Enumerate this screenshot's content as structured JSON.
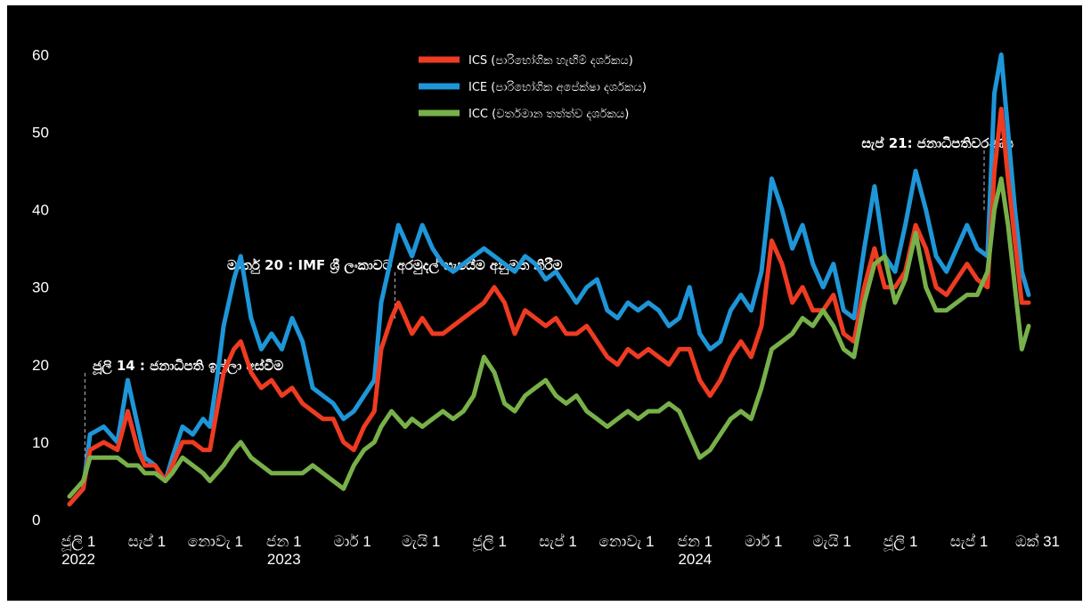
{
  "chart_data": {
    "type": "line",
    "title": "",
    "xlabel": "",
    "ylabel": "",
    "ylim": [
      0,
      62
    ],
    "yticks": [
      0,
      10,
      20,
      30,
      40,
      50,
      60
    ],
    "xlim": [
      0,
      28.0
    ],
    "x_unit": "months since 2022-07-01",
    "xticks": [
      {
        "x": 0,
        "label": "ජූලි 1",
        "year": "2022"
      },
      {
        "x": 2,
        "label": "සැප් 1",
        "year": ""
      },
      {
        "x": 4,
        "label": "නොවැ 1",
        "year": ""
      },
      {
        "x": 6,
        "label": "ජන 1",
        "year": "2023"
      },
      {
        "x": 8,
        "label": "මාර් 1",
        "year": ""
      },
      {
        "x": 10,
        "label": "මැයි 1",
        "year": ""
      },
      {
        "x": 12,
        "label": "ජූලි 1",
        "year": ""
      },
      {
        "x": 14,
        "label": "සැප් 1",
        "year": ""
      },
      {
        "x": 16,
        "label": "නොවැ 1",
        "year": ""
      },
      {
        "x": 18,
        "label": "ජන 1",
        "year": "2024"
      },
      {
        "x": 20,
        "label": "මාර් 1",
        "year": ""
      },
      {
        "x": 22,
        "label": "මැයි 1",
        "year": ""
      },
      {
        "x": 24,
        "label": "ජූලි 1",
        "year": ""
      },
      {
        "x": 26,
        "label": "සැප් 1",
        "year": ""
      },
      {
        "x": 28,
        "label": "ඔක් 31",
        "year": ""
      }
    ],
    "grid": false,
    "legend": "top-center",
    "series": [
      {
        "name": "ICE (පාරිභෝගික අපේක්ෂා දර්ශකය)",
        "color": "#1e96d8",
        "points": [
          [
            0,
            2
          ],
          [
            0.4,
            4
          ],
          [
            0.6,
            11
          ],
          [
            1.0,
            12
          ],
          [
            1.4,
            10
          ],
          [
            1.7,
            18
          ],
          [
            2.0,
            12
          ],
          [
            2.2,
            8
          ],
          [
            2.5,
            7
          ],
          [
            2.8,
            5
          ],
          [
            3.0,
            8
          ],
          [
            3.3,
            12
          ],
          [
            3.6,
            11
          ],
          [
            3.9,
            13
          ],
          [
            4.1,
            12
          ],
          [
            4.3,
            18
          ],
          [
            4.5,
            25
          ],
          [
            4.8,
            31
          ],
          [
            5.0,
            34
          ],
          [
            5.3,
            26
          ],
          [
            5.6,
            22
          ],
          [
            5.9,
            24
          ],
          [
            6.2,
            22
          ],
          [
            6.5,
            26
          ],
          [
            6.8,
            23
          ],
          [
            7.1,
            17
          ],
          [
            7.4,
            16
          ],
          [
            7.7,
            15
          ],
          [
            8.0,
            13
          ],
          [
            8.3,
            14
          ],
          [
            8.6,
            16
          ],
          [
            8.9,
            18
          ],
          [
            9.1,
            28
          ],
          [
            9.4,
            34
          ],
          [
            9.6,
            38
          ],
          [
            9.8,
            36
          ],
          [
            10.0,
            34
          ],
          [
            10.3,
            38
          ],
          [
            10.6,
            35
          ],
          [
            10.9,
            33
          ],
          [
            11.2,
            32
          ],
          [
            11.5,
            33
          ],
          [
            11.8,
            34
          ],
          [
            12.1,
            35
          ],
          [
            12.4,
            34
          ],
          [
            12.7,
            33
          ],
          [
            13.0,
            32
          ],
          [
            13.3,
            34
          ],
          [
            13.6,
            33
          ],
          [
            13.9,
            31
          ],
          [
            14.2,
            32
          ],
          [
            14.5,
            30
          ],
          [
            14.8,
            28
          ],
          [
            15.1,
            30
          ],
          [
            15.4,
            31
          ],
          [
            15.7,
            27
          ],
          [
            16.0,
            26
          ],
          [
            16.3,
            28
          ],
          [
            16.6,
            27
          ],
          [
            16.9,
            28
          ],
          [
            17.2,
            27
          ],
          [
            17.5,
            25
          ],
          [
            17.8,
            26
          ],
          [
            18.1,
            30
          ],
          [
            18.4,
            24
          ],
          [
            18.7,
            22
          ],
          [
            19.0,
            23
          ],
          [
            19.3,
            27
          ],
          [
            19.6,
            29
          ],
          [
            19.9,
            27
          ],
          [
            20.2,
            32
          ],
          [
            20.5,
            44
          ],
          [
            20.8,
            40
          ],
          [
            21.1,
            35
          ],
          [
            21.4,
            38
          ],
          [
            21.7,
            33
          ],
          [
            22.0,
            30
          ],
          [
            22.3,
            33
          ],
          [
            22.6,
            27
          ],
          [
            22.9,
            26
          ],
          [
            23.2,
            35
          ],
          [
            23.5,
            43
          ],
          [
            23.8,
            34
          ],
          [
            24.1,
            32
          ],
          [
            24.4,
            38
          ],
          [
            24.7,
            45
          ],
          [
            25.0,
            40
          ],
          [
            25.3,
            34
          ],
          [
            25.6,
            32
          ],
          [
            25.9,
            35
          ],
          [
            26.2,
            38
          ],
          [
            26.5,
            35
          ],
          [
            26.8,
            34
          ],
          [
            27.0,
            55
          ],
          [
            27.2,
            60
          ],
          [
            27.4,
            50
          ],
          [
            27.6,
            40
          ],
          [
            27.8,
            32
          ],
          [
            28.0,
            29
          ]
        ]
      },
      {
        "name": "ICS (පාරිභෝගික හැඟීම් දර්ශකය)",
        "color": "#ee3b22",
        "points": [
          [
            0,
            2
          ],
          [
            0.4,
            4
          ],
          [
            0.6,
            9
          ],
          [
            1.0,
            10
          ],
          [
            1.4,
            9
          ],
          [
            1.7,
            14
          ],
          [
            2.0,
            9
          ],
          [
            2.2,
            7
          ],
          [
            2.5,
            7
          ],
          [
            2.8,
            5
          ],
          [
            3.0,
            7
          ],
          [
            3.3,
            10
          ],
          [
            3.6,
            10
          ],
          [
            3.9,
            9
          ],
          [
            4.1,
            9
          ],
          [
            4.3,
            14
          ],
          [
            4.5,
            19
          ],
          [
            4.8,
            22
          ],
          [
            5.0,
            23
          ],
          [
            5.3,
            19
          ],
          [
            5.6,
            17
          ],
          [
            5.9,
            18
          ],
          [
            6.2,
            16
          ],
          [
            6.5,
            17
          ],
          [
            6.8,
            15
          ],
          [
            7.1,
            14
          ],
          [
            7.4,
            13
          ],
          [
            7.7,
            13
          ],
          [
            8.0,
            10
          ],
          [
            8.3,
            9
          ],
          [
            8.6,
            12
          ],
          [
            8.9,
            14
          ],
          [
            9.1,
            22
          ],
          [
            9.4,
            26
          ],
          [
            9.6,
            28
          ],
          [
            9.8,
            26
          ],
          [
            10.0,
            24
          ],
          [
            10.3,
            26
          ],
          [
            10.6,
            24
          ],
          [
            10.9,
            24
          ],
          [
            11.2,
            25
          ],
          [
            11.5,
            26
          ],
          [
            11.8,
            27
          ],
          [
            12.1,
            28
          ],
          [
            12.4,
            30
          ],
          [
            12.7,
            28
          ],
          [
            13.0,
            24
          ],
          [
            13.3,
            27
          ],
          [
            13.6,
            26
          ],
          [
            13.9,
            25
          ],
          [
            14.2,
            26
          ],
          [
            14.5,
            24
          ],
          [
            14.8,
            24
          ],
          [
            15.1,
            25
          ],
          [
            15.4,
            23
          ],
          [
            15.7,
            21
          ],
          [
            16.0,
            20
          ],
          [
            16.3,
            22
          ],
          [
            16.6,
            21
          ],
          [
            16.9,
            22
          ],
          [
            17.2,
            21
          ],
          [
            17.5,
            20
          ],
          [
            17.8,
            22
          ],
          [
            18.1,
            22
          ],
          [
            18.4,
            18
          ],
          [
            18.7,
            16
          ],
          [
            19.0,
            18
          ],
          [
            19.3,
            21
          ],
          [
            19.6,
            23
          ],
          [
            19.9,
            21
          ],
          [
            20.2,
            25
          ],
          [
            20.5,
            36
          ],
          [
            20.8,
            33
          ],
          [
            21.1,
            28
          ],
          [
            21.4,
            30
          ],
          [
            21.7,
            27
          ],
          [
            22.0,
            27
          ],
          [
            22.3,
            29
          ],
          [
            22.6,
            24
          ],
          [
            22.9,
            23
          ],
          [
            23.2,
            30
          ],
          [
            23.5,
            35
          ],
          [
            23.8,
            30
          ],
          [
            24.1,
            30
          ],
          [
            24.4,
            32
          ],
          [
            24.7,
            38
          ],
          [
            25.0,
            35
          ],
          [
            25.3,
            30
          ],
          [
            25.6,
            29
          ],
          [
            25.9,
            31
          ],
          [
            26.2,
            33
          ],
          [
            26.5,
            31
          ],
          [
            26.8,
            30
          ],
          [
            27.0,
            45
          ],
          [
            27.2,
            53
          ],
          [
            27.4,
            44
          ],
          [
            27.6,
            36
          ],
          [
            27.8,
            28
          ],
          [
            28.0,
            28
          ]
        ]
      },
      {
        "name": "ICC (වර්තමාන තත්ත්ව දර්ශකය)",
        "color": "#78b04a",
        "points": [
          [
            0,
            3
          ],
          [
            0.4,
            5
          ],
          [
            0.6,
            8
          ],
          [
            1.0,
            8
          ],
          [
            1.4,
            8
          ],
          [
            1.7,
            7
          ],
          [
            2.0,
            7
          ],
          [
            2.2,
            6
          ],
          [
            2.5,
            6
          ],
          [
            2.8,
            5
          ],
          [
            3.0,
            6
          ],
          [
            3.3,
            8
          ],
          [
            3.6,
            7
          ],
          [
            3.9,
            6
          ],
          [
            4.1,
            5
          ],
          [
            4.3,
            6
          ],
          [
            4.5,
            7
          ],
          [
            4.8,
            9
          ],
          [
            5.0,
            10
          ],
          [
            5.3,
            8
          ],
          [
            5.6,
            7
          ],
          [
            5.9,
            6
          ],
          [
            6.2,
            6
          ],
          [
            6.5,
            6
          ],
          [
            6.8,
            6
          ],
          [
            7.1,
            7
          ],
          [
            7.4,
            6
          ],
          [
            7.7,
            5
          ],
          [
            8.0,
            4
          ],
          [
            8.3,
            7
          ],
          [
            8.6,
            9
          ],
          [
            8.9,
            10
          ],
          [
            9.1,
            12
          ],
          [
            9.4,
            14
          ],
          [
            9.6,
            13
          ],
          [
            9.8,
            12
          ],
          [
            10.0,
            13
          ],
          [
            10.3,
            12
          ],
          [
            10.6,
            13
          ],
          [
            10.9,
            14
          ],
          [
            11.2,
            13
          ],
          [
            11.5,
            14
          ],
          [
            11.8,
            16
          ],
          [
            12.1,
            21
          ],
          [
            12.4,
            19
          ],
          [
            12.7,
            15
          ],
          [
            13.0,
            14
          ],
          [
            13.3,
            16
          ],
          [
            13.6,
            17
          ],
          [
            13.9,
            18
          ],
          [
            14.2,
            16
          ],
          [
            14.5,
            15
          ],
          [
            14.8,
            16
          ],
          [
            15.1,
            14
          ],
          [
            15.4,
            13
          ],
          [
            15.7,
            12
          ],
          [
            16.0,
            13
          ],
          [
            16.3,
            14
          ],
          [
            16.6,
            13
          ],
          [
            16.9,
            14
          ],
          [
            17.2,
            14
          ],
          [
            17.5,
            15
          ],
          [
            17.8,
            14
          ],
          [
            18.1,
            11
          ],
          [
            18.4,
            8
          ],
          [
            18.7,
            9
          ],
          [
            19.0,
            11
          ],
          [
            19.3,
            13
          ],
          [
            19.6,
            14
          ],
          [
            19.9,
            13
          ],
          [
            20.2,
            17
          ],
          [
            20.5,
            22
          ],
          [
            20.8,
            23
          ],
          [
            21.1,
            24
          ],
          [
            21.4,
            26
          ],
          [
            21.7,
            25
          ],
          [
            22.0,
            27
          ],
          [
            22.3,
            25
          ],
          [
            22.6,
            22
          ],
          [
            22.9,
            21
          ],
          [
            23.2,
            28
          ],
          [
            23.5,
            33
          ],
          [
            23.8,
            34
          ],
          [
            24.1,
            28
          ],
          [
            24.4,
            31
          ],
          [
            24.7,
            37
          ],
          [
            25.0,
            30
          ],
          [
            25.3,
            27
          ],
          [
            25.6,
            27
          ],
          [
            25.9,
            28
          ],
          [
            26.2,
            29
          ],
          [
            26.5,
            29
          ],
          [
            26.8,
            32
          ],
          [
            27.0,
            40
          ],
          [
            27.2,
            44
          ],
          [
            27.4,
            38
          ],
          [
            27.6,
            30
          ],
          [
            27.8,
            22
          ],
          [
            28.0,
            25
          ]
        ]
      }
    ],
    "legend_order": [
      "ICS (පාරිභෝගික හැඟීම් දර්ශකය)",
      "ICE (පාරිභෝගික අපේක්ෂා දර්ශකය)",
      "ICC (වර්තමාන තත්ත්ව දර්ශකය)"
    ],
    "annotations": [
      {
        "x": 0.45,
        "y": 19.5,
        "text": "ජූලි 14 : ජනාධිපති ඉල්ලා අස්වීම"
      },
      {
        "x": 9.5,
        "y": 31.5,
        "text": "මාර්තු 20 : IMF ශ්‍රී ලංකාවට අරමුදල් සැපයීම අනුමත කිරීම"
      },
      {
        "x": 26.7,
        "y": 47.0,
        "text": "සැප් 21: ජනාධිපතිවරණය"
      }
    ]
  }
}
